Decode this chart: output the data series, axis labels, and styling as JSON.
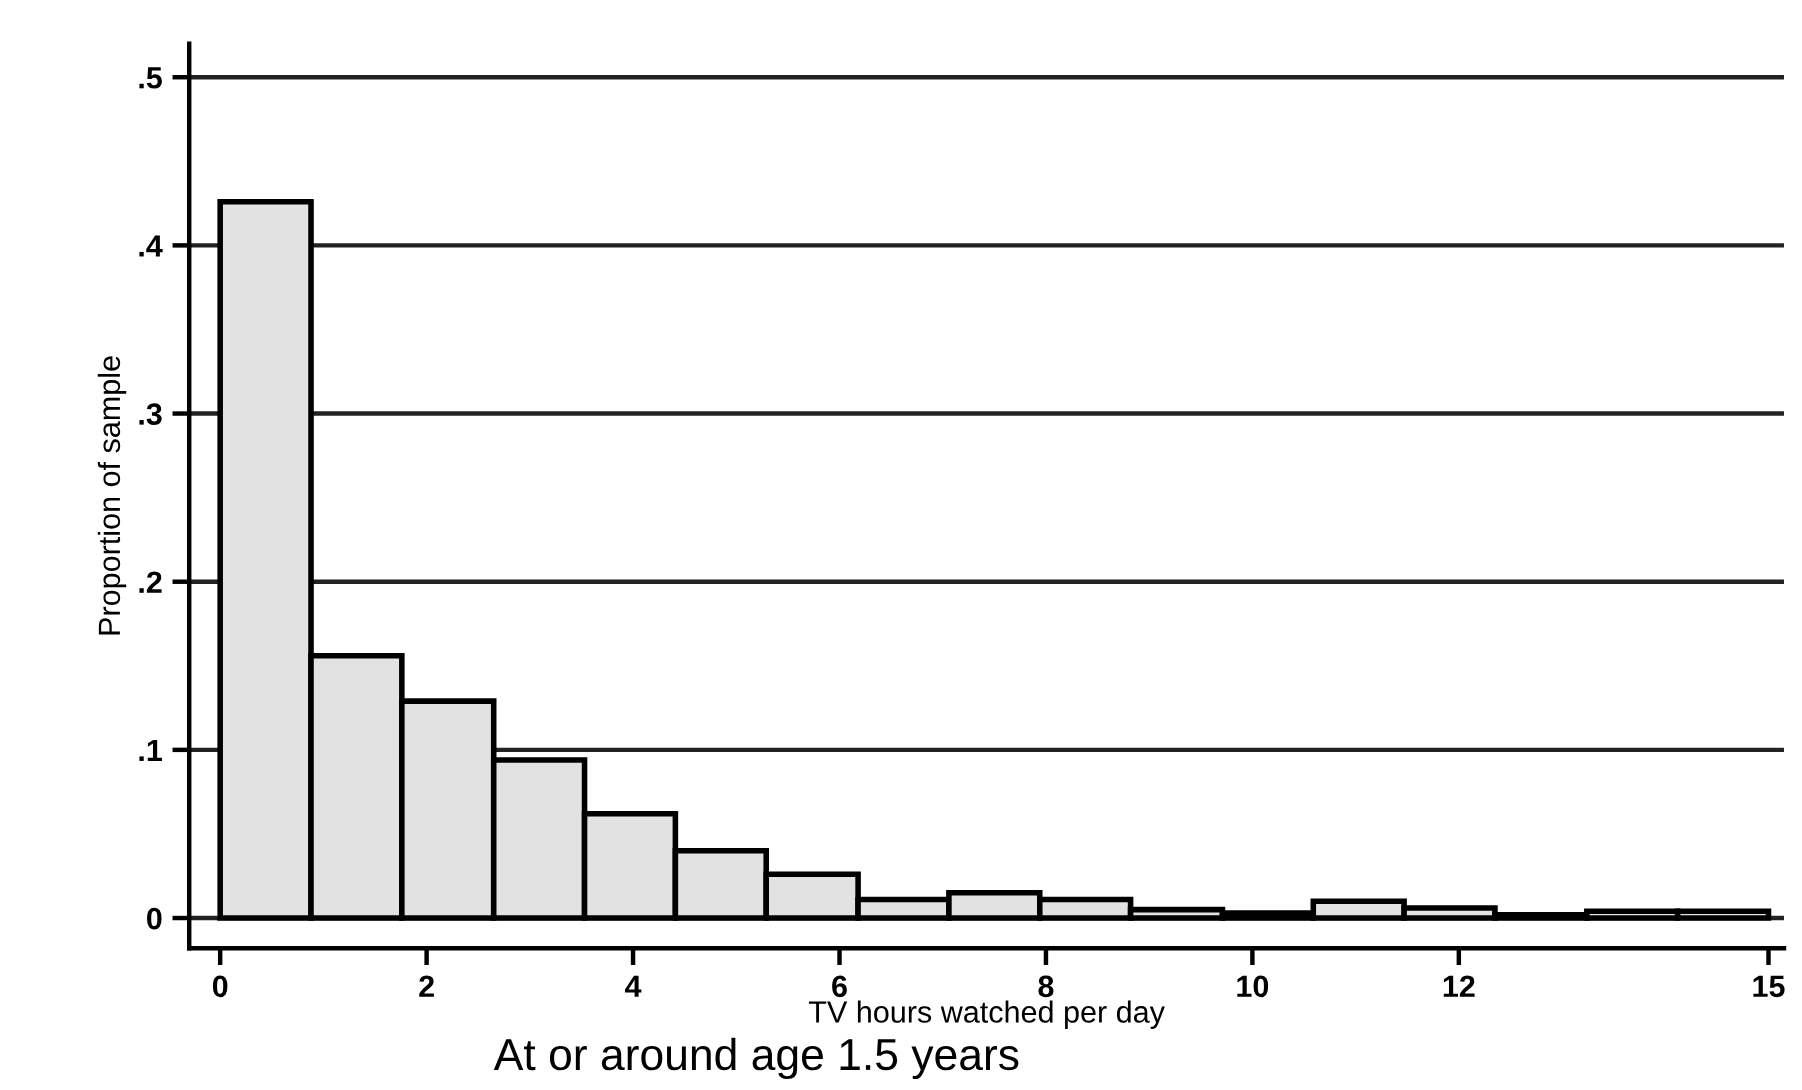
{
  "chart_data": {
    "type": "histogram",
    "title": "At or around age 1.5 years",
    "xlabel": "TV hours watched per day",
    "ylabel": "Proportion of sample",
    "bins": [
      0,
      0.88,
      1.76,
      2.65,
      3.53,
      4.41,
      5.29,
      6.18,
      7.06,
      7.94,
      8.82,
      9.71,
      10.59,
      11.47,
      12.35,
      13.24,
      14.12,
      15
    ],
    "values": [
      0.426,
      0.156,
      0.129,
      0.094,
      0.062,
      0.04,
      0.026,
      0.011,
      0.015,
      0.011,
      0.005,
      0.003,
      0.01,
      0.006,
      0.002,
      0.004,
      0.004
    ],
    "color": "#e2e2e2",
    "xlim": [
      -0.3,
      15.15
    ],
    "ylim": [
      -0.018,
      0.52
    ],
    "xticks": [
      0,
      2,
      4,
      6,
      8,
      10,
      12,
      15
    ],
    "yticks": [
      {
        "value": 0,
        "label": "0"
      },
      {
        "value": 0.1,
        "label": ".1"
      },
      {
        "value": 0.2,
        "label": ".2"
      },
      {
        "value": 0.3,
        "label": ".3"
      },
      {
        "value": 0.4,
        "label": ".4"
      },
      {
        "value": 0.5,
        "label": ".5"
      }
    ],
    "grid": "y",
    "legend": false
  }
}
